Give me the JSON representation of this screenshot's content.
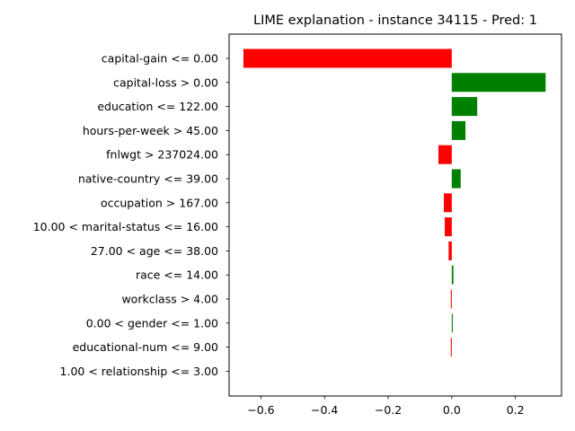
{
  "chart_data": {
    "type": "bar",
    "orientation": "horizontal",
    "title": "LIME explanation - instance 34115 - Pred: 1",
    "xlabel": "",
    "ylabel": "",
    "xlim": [
      -0.7,
      0.345
    ],
    "xticks": [
      -0.6,
      -0.4,
      -0.2,
      0.0,
      0.2
    ],
    "xtick_labels": [
      "−0.6",
      "−0.4",
      "−0.2",
      "0.0",
      "0.2"
    ],
    "grid": false,
    "colors": {
      "positive": "#008000",
      "negative": "#ff0000"
    },
    "categories": [
      "capital-gain <= 0.00",
      "capital-loss > 0.00",
      "education <= 122.00",
      "hours-per-week > 45.00",
      "fnlwgt > 237024.00",
      "native-country <= 39.00",
      "occupation > 167.00",
      "10.00 < marital-status <= 16.00",
      "27.00 < age <= 38.00",
      "race <= 14.00",
      "workclass > 4.00",
      "0.00 < gender <= 1.00",
      "educational-num <= 9.00",
      "1.00 < relationship <= 3.00"
    ],
    "values": [
      -0.655,
      0.295,
      0.08,
      0.043,
      -0.042,
      0.028,
      -0.025,
      -0.022,
      -0.01,
      0.005,
      -0.003,
      0.003,
      -0.003,
      0.0
    ]
  }
}
